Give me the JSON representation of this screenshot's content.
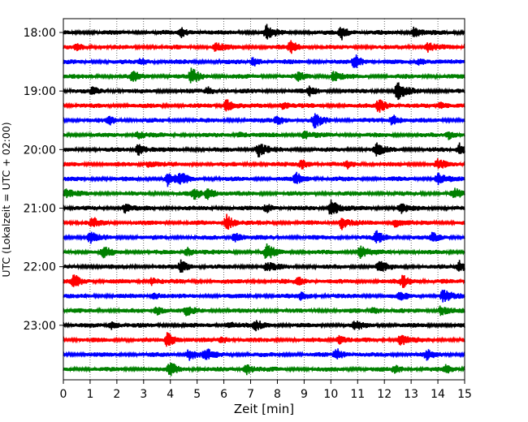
{
  "chart_data": {
    "type": "line",
    "title": "",
    "xlabel": "Zeit  [min]",
    "ylabel": "UTC (Lokalzeit = UTC + 02:00)",
    "xlim": [
      0,
      15
    ],
    "x_ticks": [
      "0",
      "1",
      "2",
      "3",
      "4",
      "5",
      "6",
      "7",
      "8",
      "9",
      "10",
      "11",
      "12",
      "13",
      "14",
      "15"
    ],
    "y_ticks": [
      "18:00",
      "19:00",
      "20:00",
      "21:00",
      "22:00",
      "23:00"
    ],
    "grid": "vertical dotted",
    "line_colors": [
      "#000000",
      "#ff0000",
      "#0000ff",
      "#008000"
    ],
    "trace_interval_minutes": 15,
    "series": [
      {
        "start": "18:00",
        "color": "#000000",
        "events": [
          [
            4.4,
            1.0
          ],
          [
            7.6,
            1.6
          ],
          [
            10.4,
            1.5
          ],
          [
            13.1,
            1.1
          ]
        ]
      },
      {
        "start": "18:15",
        "color": "#ff0000",
        "events": [
          [
            0.5,
            0.8
          ],
          [
            5.7,
            0.9
          ],
          [
            8.5,
            1.3
          ],
          [
            13.6,
            1.0
          ]
        ]
      },
      {
        "start": "18:30",
        "color": "#0000ff",
        "events": [
          [
            2.9,
            0.8
          ],
          [
            7.1,
            1.0
          ],
          [
            10.9,
            1.5
          ],
          [
            13.3,
            0.8
          ]
        ]
      },
      {
        "start": "18:45",
        "color": "#008000",
        "events": [
          [
            2.6,
            1.0
          ],
          [
            4.8,
            1.7
          ],
          [
            8.8,
            0.8
          ],
          [
            10.1,
            1.0
          ]
        ]
      },
      {
        "start": "19:00",
        "color": "#000000",
        "events": [
          [
            1.1,
            0.9
          ],
          [
            5.4,
            0.8
          ],
          [
            9.2,
            0.9
          ],
          [
            12.5,
            2.0
          ]
        ]
      },
      {
        "start": "19:15",
        "color": "#ff0000",
        "events": [
          [
            6.1,
            1.6
          ],
          [
            8.2,
            0.8
          ],
          [
            11.8,
            1.7
          ],
          [
            14.1,
            0.8
          ]
        ]
      },
      {
        "start": "19:30",
        "color": "#0000ff",
        "events": [
          [
            1.7,
            0.9
          ],
          [
            8.0,
            1.1
          ],
          [
            9.4,
            1.5
          ],
          [
            12.3,
            1.3
          ]
        ]
      },
      {
        "start": "19:45",
        "color": "#008000",
        "events": [
          [
            2.8,
            0.8
          ],
          [
            6.6,
            0.7
          ],
          [
            9.0,
            0.9
          ],
          [
            14.4,
            0.9
          ]
        ]
      },
      {
        "start": "20:00",
        "color": "#000000",
        "events": [
          [
            2.8,
            1.3
          ],
          [
            7.3,
            1.6
          ],
          [
            11.7,
            1.2
          ],
          [
            14.8,
            1.4
          ]
        ]
      },
      {
        "start": "20:15",
        "color": "#ff0000",
        "events": [
          [
            3.2,
            0.9
          ],
          [
            8.9,
            1.1
          ],
          [
            10.6,
            0.8
          ],
          [
            14.0,
            0.9
          ]
        ]
      },
      {
        "start": "20:30",
        "color": "#0000ff",
        "events": [
          [
            3.9,
            1.5
          ],
          [
            4.4,
            1.0
          ],
          [
            8.7,
            1.2
          ],
          [
            14.0,
            1.2
          ]
        ]
      },
      {
        "start": "20:45",
        "color": "#008000",
        "events": [
          [
            0.1,
            0.8
          ],
          [
            4.9,
            1.1
          ],
          [
            5.4,
            1.3
          ],
          [
            14.6,
            1.0
          ]
        ]
      },
      {
        "start": "21:00",
        "color": "#000000",
        "events": [
          [
            2.3,
            0.9
          ],
          [
            7.6,
            0.9
          ],
          [
            10.0,
            2.1
          ],
          [
            12.6,
            1.0
          ]
        ]
      },
      {
        "start": "21:15",
        "color": "#ff0000",
        "events": [
          [
            1.1,
            1.0
          ],
          [
            6.1,
            1.8
          ],
          [
            10.4,
            1.5
          ],
          [
            12.4,
            1.0
          ]
        ]
      },
      {
        "start": "21:30",
        "color": "#0000ff",
        "events": [
          [
            1.0,
            1.1
          ],
          [
            6.4,
            1.1
          ],
          [
            11.7,
            1.2
          ],
          [
            13.8,
            0.9
          ]
        ]
      },
      {
        "start": "21:45",
        "color": "#008000",
        "events": [
          [
            1.5,
            1.1
          ],
          [
            4.6,
            1.1
          ],
          [
            7.6,
            1.6
          ],
          [
            11.1,
            1.4
          ]
        ]
      },
      {
        "start": "22:00",
        "color": "#000000",
        "events": [
          [
            4.4,
            1.4
          ],
          [
            7.6,
            1.0
          ],
          [
            11.8,
            1.1
          ],
          [
            14.8,
            1.3
          ]
        ]
      },
      {
        "start": "22:15",
        "color": "#ff0000",
        "events": [
          [
            0.4,
            1.5
          ],
          [
            3.3,
            0.8
          ],
          [
            8.8,
            0.9
          ],
          [
            12.7,
            1.3
          ]
        ]
      },
      {
        "start": "22:30",
        "color": "#0000ff",
        "events": [
          [
            3.4,
            0.8
          ],
          [
            8.9,
            0.9
          ],
          [
            12.6,
            0.7
          ],
          [
            14.2,
            1.3
          ]
        ]
      },
      {
        "start": "22:45",
        "color": "#008000",
        "events": [
          [
            3.5,
            1.0
          ],
          [
            4.6,
            0.8
          ],
          [
            11.6,
            0.8
          ],
          [
            14.1,
            1.0
          ]
        ]
      },
      {
        "start": "23:00",
        "color": "#000000",
        "events": [
          [
            1.8,
            1.0
          ],
          [
            6.2,
            0.8
          ],
          [
            7.2,
            1.0
          ],
          [
            10.9,
            0.9
          ]
        ]
      },
      {
        "start": "23:15",
        "color": "#ff0000",
        "events": [
          [
            3.9,
            1.7
          ],
          [
            5.9,
            0.8
          ],
          [
            10.3,
            1.0
          ],
          [
            12.6,
            1.3
          ]
        ]
      },
      {
        "start": "23:30",
        "color": "#0000ff",
        "events": [
          [
            4.7,
            1.3
          ],
          [
            5.3,
            1.3
          ],
          [
            10.2,
            1.4
          ],
          [
            13.6,
            1.0
          ]
        ]
      },
      {
        "start": "23:45",
        "color": "#008000",
        "events": [
          [
            4.0,
            1.5
          ],
          [
            6.8,
            1.4
          ],
          [
            12.4,
            0.9
          ],
          [
            14.3,
            0.8
          ]
        ]
      }
    ]
  }
}
